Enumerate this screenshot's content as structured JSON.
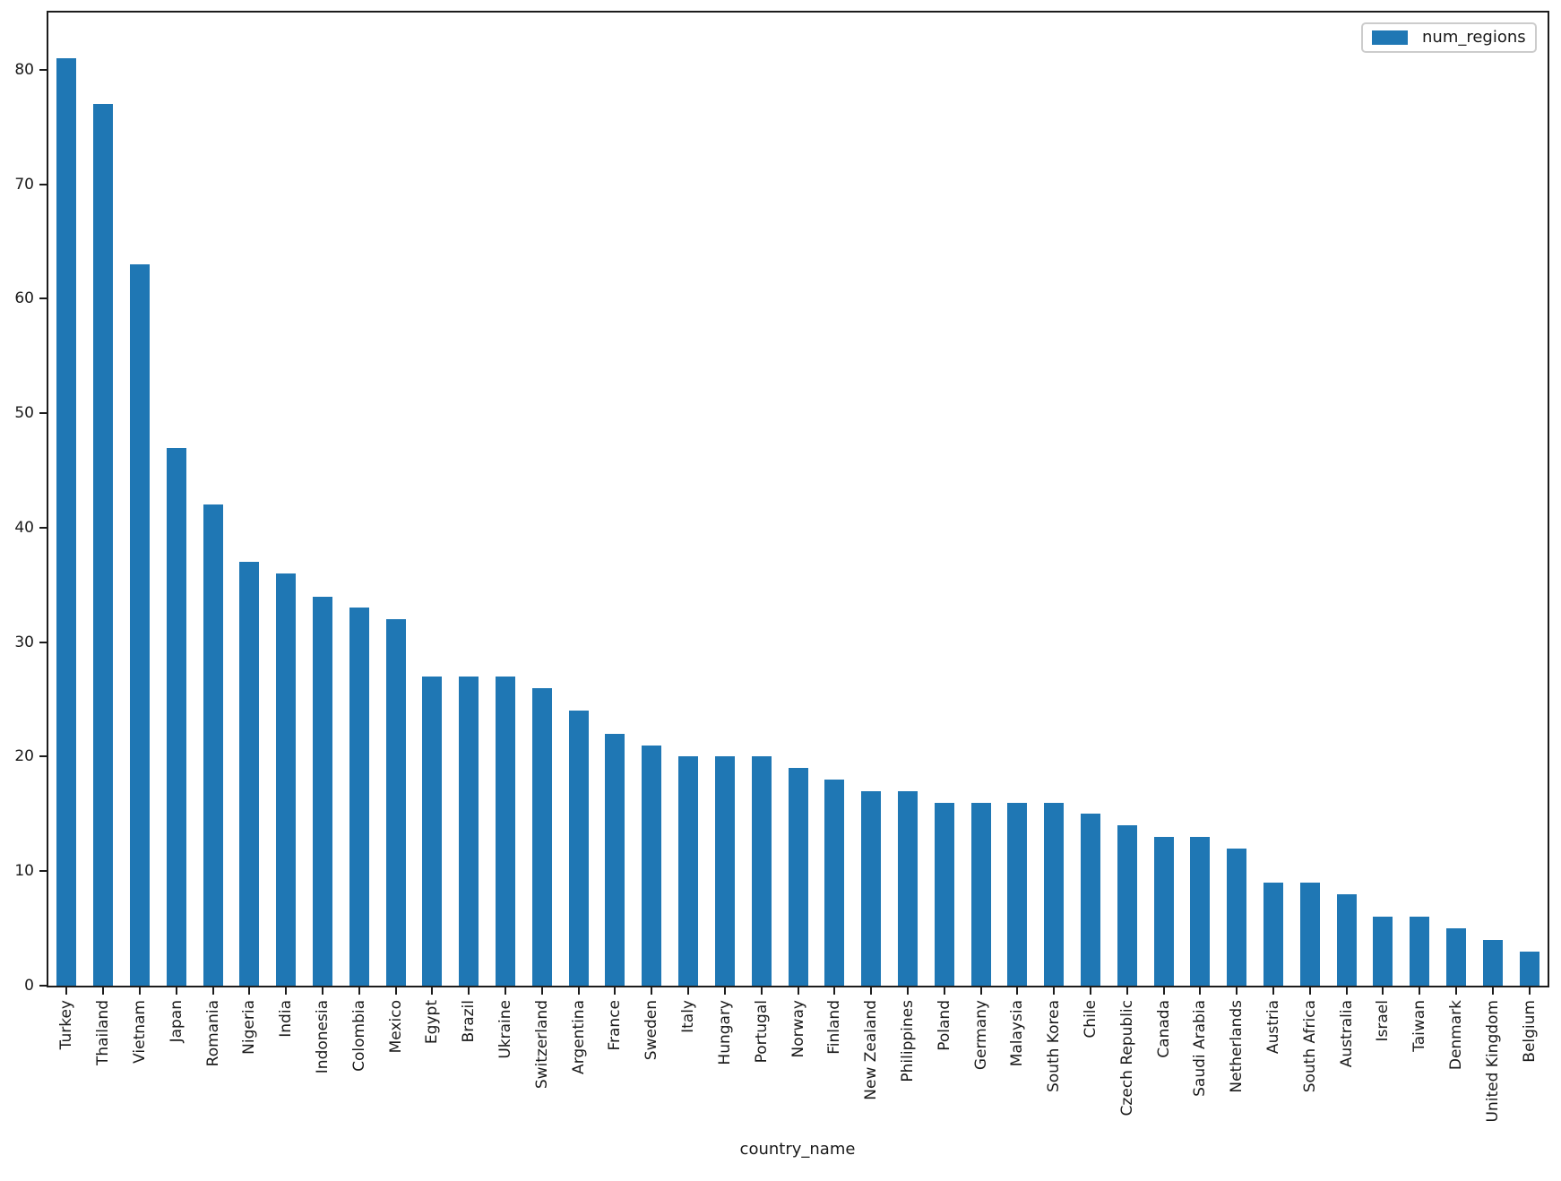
{
  "chart_data": {
    "type": "bar",
    "title": "",
    "xlabel": "country_name",
    "ylabel": "",
    "series_label": "num_regions",
    "legend": {
      "position": "upper right",
      "entries": [
        "num_regions"
      ]
    },
    "bar_color": "#1f77b4",
    "axis_color": "#1c1c1c",
    "grid": false,
    "categories": [
      "Turkey",
      "Thailand",
      "Vietnam",
      "Japan",
      "Romania",
      "Nigeria",
      "India",
      "Indonesia",
      "Colombia",
      "Mexico",
      "Egypt",
      "Brazil",
      "Ukraine",
      "Switzerland",
      "Argentina",
      "France",
      "Sweden",
      "Italy",
      "Hungary",
      "Portugal",
      "Norway",
      "Finland",
      "New Zealand",
      "Philippines",
      "Poland",
      "Germany",
      "Malaysia",
      "South Korea",
      "Chile",
      "Czech Republic",
      "Canada",
      "Saudi Arabia",
      "Netherlands",
      "Austria",
      "South Africa",
      "Australia",
      "Israel",
      "Taiwan",
      "Denmark",
      "United Kingdom",
      "Belgium"
    ],
    "values": [
      81,
      77,
      63,
      47,
      42,
      37,
      36,
      34,
      33,
      32,
      27,
      27,
      27,
      26,
      24,
      22,
      21,
      20,
      20,
      20,
      19,
      18,
      17,
      17,
      16,
      16,
      16,
      16,
      15,
      14,
      13,
      13,
      12,
      9,
      9,
      8,
      6,
      6,
      5,
      4,
      3
    ],
    "yticks": [
      0,
      10,
      20,
      30,
      40,
      50,
      60,
      70,
      80
    ],
    "ylim": [
      0,
      85
    ]
  }
}
